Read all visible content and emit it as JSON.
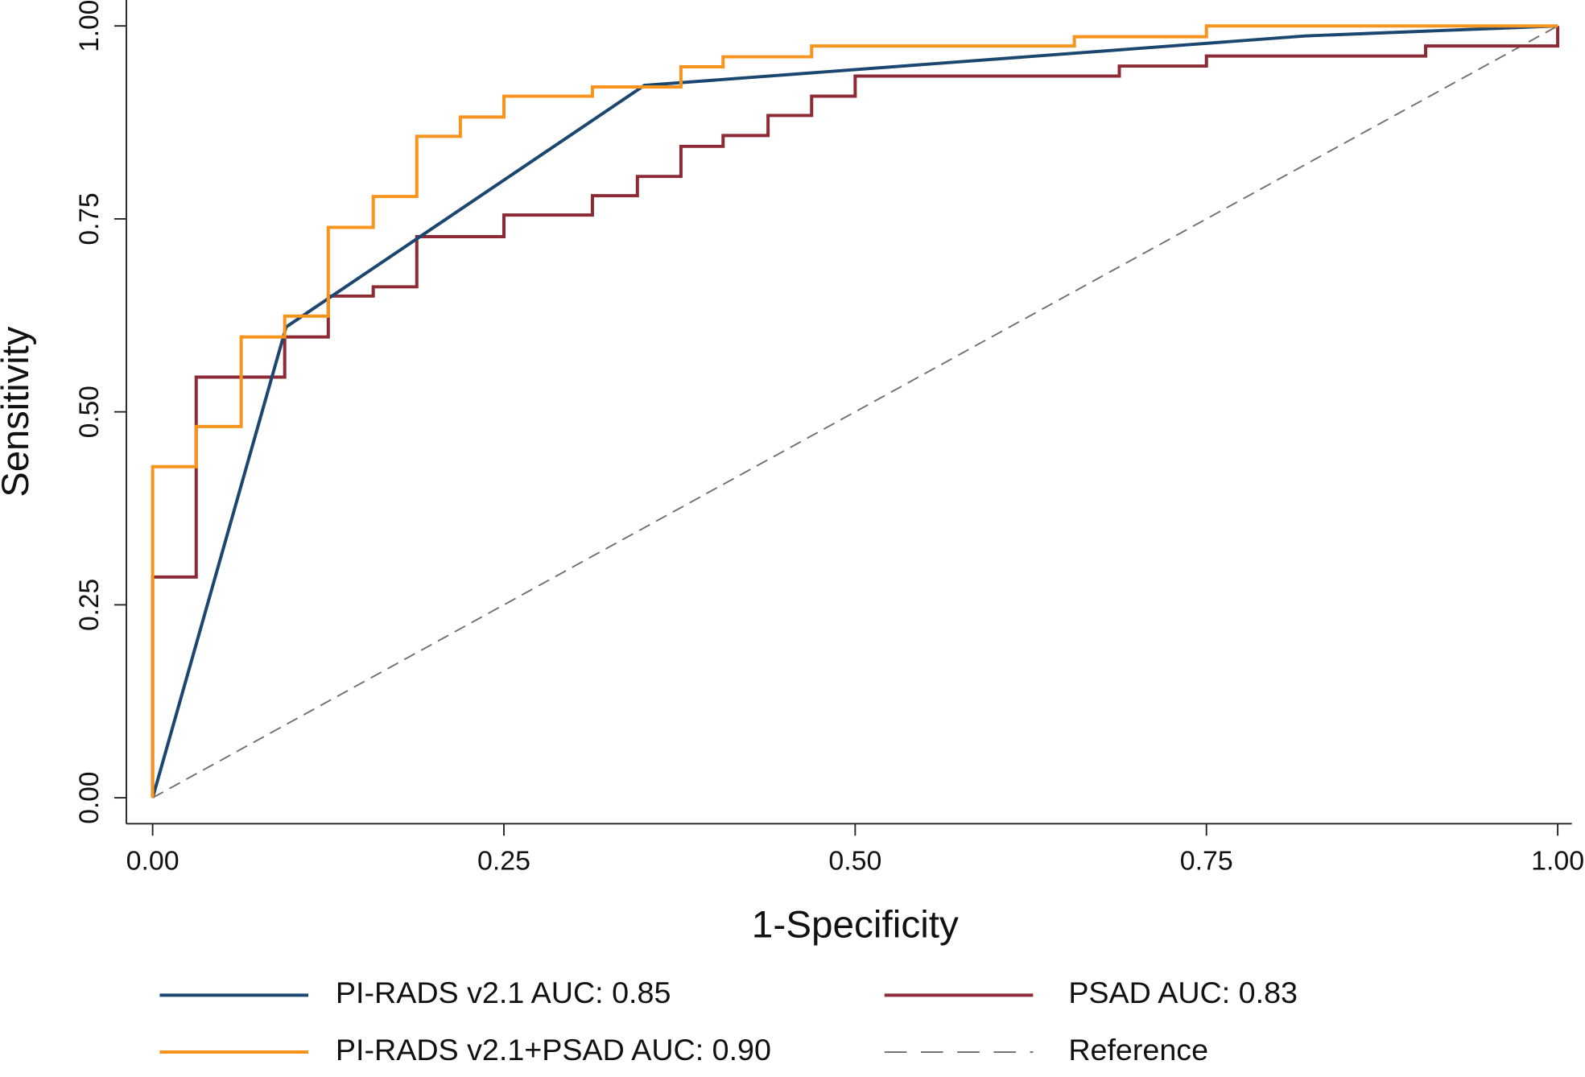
{
  "chart_data": {
    "type": "line",
    "xlabel": "1-Specificity",
    "ylabel": "Sensitivity",
    "xlim": [
      0,
      1
    ],
    "ylim": [
      0,
      1
    ],
    "xticks": [
      {
        "value": 0,
        "label": "0.00"
      },
      {
        "value": 0.25,
        "label": "0.25"
      },
      {
        "value": 0.5,
        "label": "0.50"
      },
      {
        "value": 0.75,
        "label": "0.75"
      },
      {
        "value": 1,
        "label": "1.00"
      }
    ],
    "yticks": [
      {
        "value": 0,
        "label": "0.00"
      },
      {
        "value": 0.25,
        "label": "0.25"
      },
      {
        "value": 0.5,
        "label": "0.50"
      },
      {
        "value": 0.75,
        "label": "0.75"
      },
      {
        "value": 1,
        "label": "1.00"
      }
    ],
    "series": [
      {
        "name": "PI-RADS v2.1 AUC: 0.85",
        "color": "#1b4670",
        "dash": false,
        "x": [
          0,
          0.095,
          0.35,
          0.82,
          1
        ],
        "values": [
          0,
          0.61,
          0.923,
          0.987,
          1
        ]
      },
      {
        "name": "PSAD AUC: 0.83",
        "color": "#8c2a35",
        "dash": false,
        "x": [
          0,
          0,
          0.031,
          0.031,
          0.094,
          0.094,
          0.125,
          0.125,
          0.157,
          0.157,
          0.188,
          0.188,
          0.25,
          0.25,
          0.313,
          0.313,
          0.345,
          0.345,
          0.376,
          0.376,
          0.406,
          0.406,
          0.438,
          0.438,
          0.469,
          0.469,
          0.5,
          0.5,
          0.688,
          0.688,
          0.75,
          0.75,
          0.906,
          0.906,
          1,
          1
        ],
        "values": [
          0,
          0.286,
          0.286,
          0.545,
          0.545,
          0.597,
          0.597,
          0.65,
          0.65,
          0.662,
          0.662,
          0.727,
          0.727,
          0.755,
          0.755,
          0.78,
          0.78,
          0.805,
          0.805,
          0.844,
          0.844,
          0.858,
          0.858,
          0.884,
          0.884,
          0.909,
          0.909,
          0.935,
          0.935,
          0.948,
          0.948,
          0.961,
          0.961,
          0.974,
          0.974,
          1
        ]
      },
      {
        "name": "PI-RADS v2.1+PSAD AUC: 0.90",
        "color": "#f7941d",
        "dash": false,
        "x": [
          0,
          0,
          0.031,
          0.031,
          0.063,
          0.063,
          0.094,
          0.094,
          0.125,
          0.125,
          0.157,
          0.157,
          0.188,
          0.188,
          0.219,
          0.219,
          0.25,
          0.25,
          0.313,
          0.313,
          0.376,
          0.376,
          0.406,
          0.406,
          0.469,
          0.469,
          0.656,
          0.656,
          0.75,
          0.75,
          1
        ],
        "values": [
          0,
          0.429,
          0.429,
          0.481,
          0.481,
          0.597,
          0.597,
          0.624,
          0.624,
          0.739,
          0.739,
          0.779,
          0.779,
          0.857,
          0.857,
          0.882,
          0.882,
          0.909,
          0.909,
          0.921,
          0.921,
          0.947,
          0.947,
          0.96,
          0.96,
          0.974,
          0.974,
          0.986,
          0.986,
          1,
          1
        ]
      },
      {
        "name": "Reference",
        "color": "#6e6e6e",
        "dash": true,
        "x": [
          0,
          1
        ],
        "values": [
          0,
          1
        ]
      }
    ]
  }
}
